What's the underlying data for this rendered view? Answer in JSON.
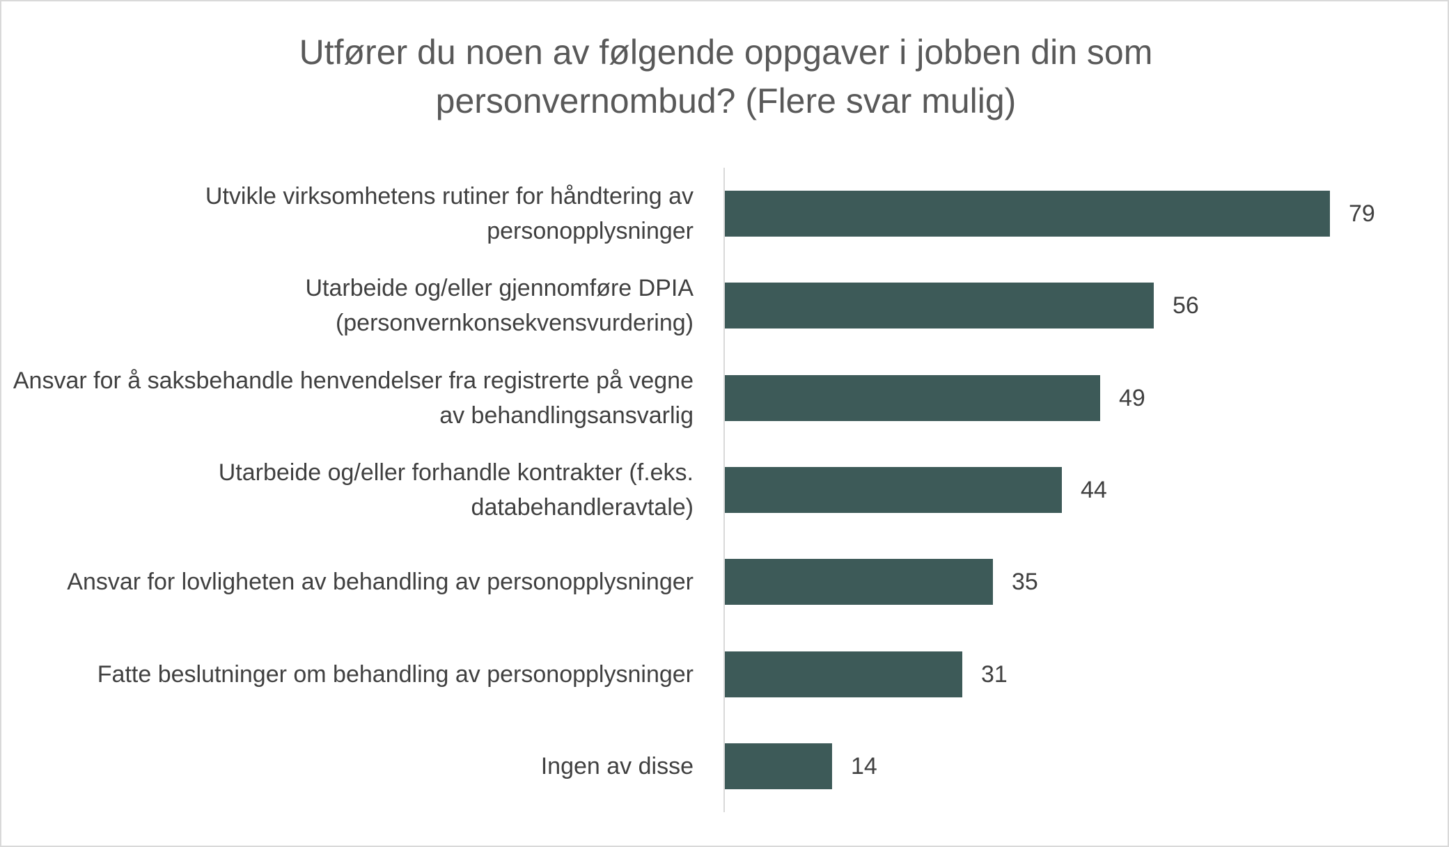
{
  "chart_data": {
    "type": "bar",
    "orientation": "horizontal",
    "title": "Utfører du noen av følgende oppgaver i jobben din som personvernombud? (Flere svar mulig)",
    "categories": [
      "Utvikle virksomhetens rutiner for håndtering av personopplysninger",
      "Utarbeide og/eller gjennomføre DPIA (personvernkonsekvensvurdering)",
      "Ansvar for å saksbehandle henvendelser fra registrerte på vegne av behandlingsansvarlig",
      "Utarbeide og/eller forhandle kontrakter (f.eks. databehandleravtale)",
      "Ansvar for lovligheten av behandling av personopplysninger",
      "Fatte beslutninger om behandling av personopplysninger",
      "Ingen av disse"
    ],
    "values": [
      79,
      56,
      49,
      44,
      35,
      31,
      14
    ],
    "data_labels": true,
    "grid": false,
    "bar_color": "#3d5a58"
  }
}
